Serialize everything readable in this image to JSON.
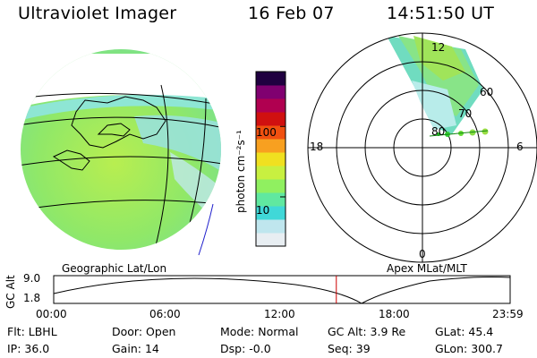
{
  "header": {
    "title": "Ultraviolet Imager",
    "date": "16 Feb 07",
    "time": "14:51:50 UT"
  },
  "colorbar": {
    "label": "photon cm⁻²s⁻¹",
    "ticks": [
      {
        "label": "100",
        "value": 100
      },
      {
        "label": "10",
        "value": 10
      }
    ],
    "colors": [
      "#e8eef2",
      "#bfe6ee",
      "#40d8d8",
      "#60e8a0",
      "#90f060",
      "#c8f040",
      "#f0e020",
      "#f8a020",
      "#f05010",
      "#d01010",
      "#b00050",
      "#800070",
      "#200040"
    ]
  },
  "polar": {
    "mlt_labels": {
      "top": "12",
      "bottom": "0",
      "left": "18",
      "right": "6"
    },
    "lat_labels": [
      "60",
      "70",
      "80"
    ]
  },
  "panels": {
    "left_label": "Geographic Lat/Lon",
    "right_label": "Apex MLat/MLT"
  },
  "altitude_plot": {
    "ylabel": "GC Alt",
    "y_ticks": [
      "9.0",
      "1.8"
    ],
    "x_ticks": [
      "00:00",
      "06:00",
      "12:00",
      "18:00",
      "23:59"
    ],
    "current_time_hours": 14.86,
    "current_marker_color": "#cc0000"
  },
  "status": [
    {
      "label": "Flt:",
      "value": "LBHL"
    },
    {
      "label": "Door:",
      "value": "Open"
    },
    {
      "label": "Mode:",
      "value": "Normal"
    },
    {
      "label": "GC Alt:",
      "value": "3.9 Re"
    },
    {
      "label": "GLat:",
      "value": "45.4"
    },
    {
      "label": "IP:",
      "value": "36.0"
    },
    {
      "label": "Gain:",
      "value": "14"
    },
    {
      "label": "Dsp:",
      "value": "-0.0"
    },
    {
      "label": "Seq:",
      "value": "39"
    },
    {
      "label": "GLon:",
      "value": "300.7"
    }
  ]
}
